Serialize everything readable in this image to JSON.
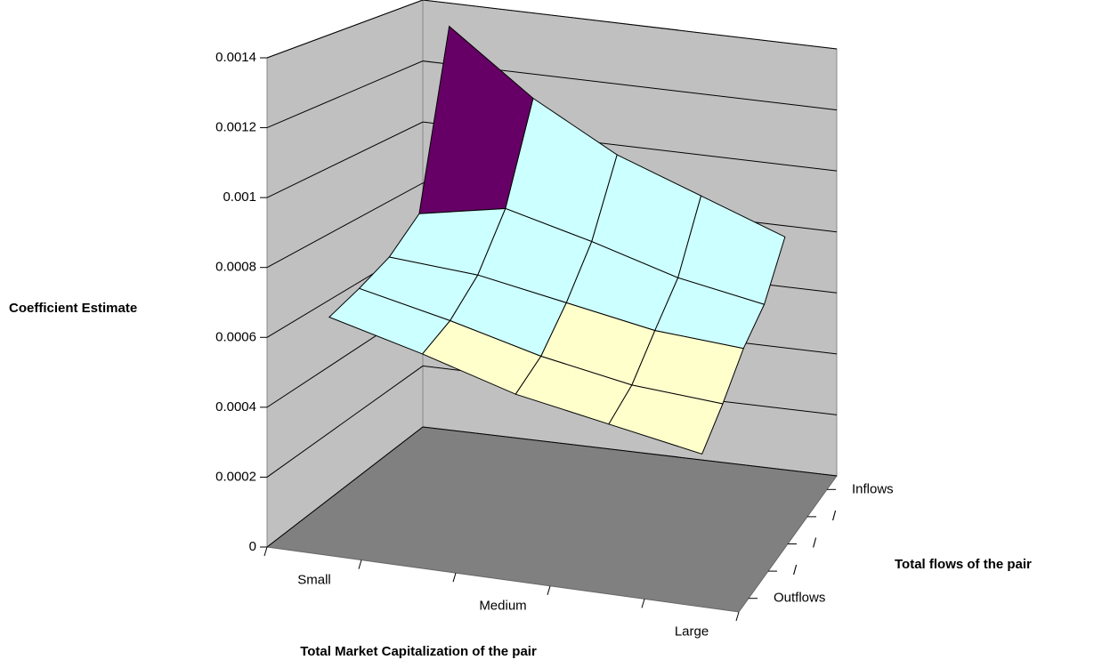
{
  "chart_data": {
    "type": "surface",
    "y_label": "Coefficient Estimate",
    "x_label": "Total Market Capitalization of the pair",
    "z_label": "Total flows of the pair",
    "categories": [
      "Small",
      null,
      "Medium",
      null,
      "Large"
    ],
    "ylim": [
      0,
      0.0014
    ],
    "yticks": [
      0,
      0.0002,
      0.0004,
      0.0006,
      0.0008,
      0.001,
      0.0012,
      0.0014
    ],
    "band_colors": [
      "#ffffcc",
      "#ffffcc",
      "#ffffcc",
      "#ccffff",
      "#ccffff",
      "#660066",
      "#ff8080"
    ],
    "wall_color": "#c0c0c0",
    "floor_color": "#808080",
    "series": [
      {
        "name": "Outflows",
        "values": [
          0.00065,
          0.00058,
          0.0005,
          0.00045,
          0.0004
        ]
      },
      {
        "name": "/",
        "values": [
          0.00068,
          0.00062,
          0.00055,
          0.0005,
          0.00048
        ]
      },
      {
        "name": "/",
        "values": [
          0.00072,
          0.0007,
          0.00065,
          0.0006,
          0.00058
        ]
      },
      {
        "name": "/",
        "values": [
          0.0008,
          0.00085,
          0.00078,
          0.0007,
          0.00065
        ]
      },
      {
        "name": "Inflows",
        "values": [
          0.00135,
          0.00115,
          0.001,
          0.0009,
          0.0008
        ]
      }
    ]
  }
}
